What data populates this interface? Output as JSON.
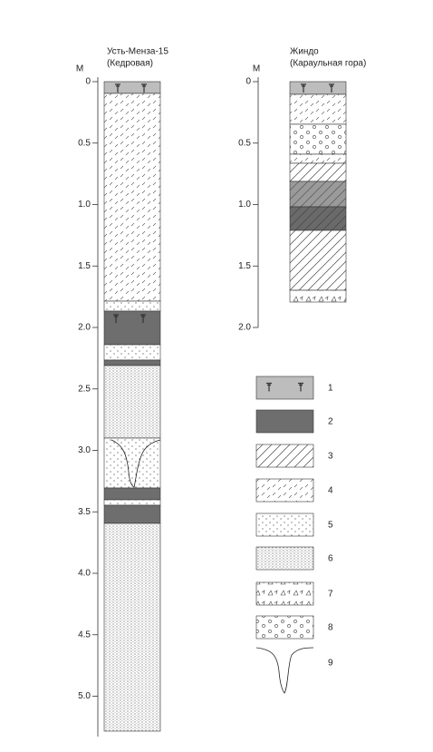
{
  "columns": [
    {
      "title": "Усть-Менза-15",
      "subtitle": "(Кедровая)",
      "axis_label": "М",
      "ticks": [
        0,
        0.5,
        {
          "value": 1,
          "label": "1.0"
        },
        1.5,
        {
          "value": 2,
          "label": "2.0"
        },
        2.5,
        {
          "value": 3,
          "label": "3.0"
        },
        3.5,
        {
          "value": 4,
          "label": "4.0"
        },
        4.5,
        {
          "value": 5,
          "label": "5.0"
        }
      ]
    },
    {
      "title": "Жиндо",
      "subtitle": "(Караульная гора)",
      "axis_label": "М",
      "ticks": [
        0,
        0.5,
        {
          "value": 1,
          "label": "1.0"
        },
        1.5,
        {
          "value": 2,
          "label": "2.0"
        }
      ]
    }
  ],
  "legend": [
    "1",
    "2",
    "3",
    "4",
    "5",
    "6",
    "7",
    "8",
    "9"
  ]
}
